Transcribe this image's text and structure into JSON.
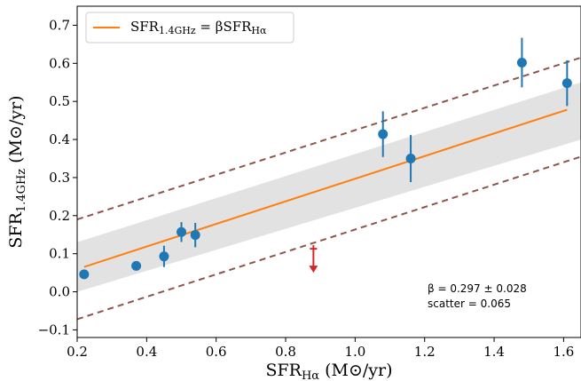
{
  "chart_data": {
    "type": "scatter",
    "title": "",
    "xlabel": {
      "main": "SFR",
      "sub": "Hα",
      "unit": " (M⊙/yr)"
    },
    "ylabel": {
      "main": "SFR",
      "sub": "1.4GHz",
      "unit": " (M⊙/yr)"
    },
    "xlim": [
      0.2,
      1.65
    ],
    "ylim": [
      -0.12,
      0.75
    ],
    "xticks": [
      0.2,
      0.4,
      0.6,
      0.8,
      1.0,
      1.2,
      1.4,
      1.6
    ],
    "xtick_labels": [
      "0.2",
      "0.4",
      "0.6",
      "0.8",
      "1.0",
      "1.2",
      "1.4",
      "1.6"
    ],
    "yticks": [
      -0.1,
      0.0,
      0.1,
      0.2,
      0.3,
      0.4,
      0.5,
      0.6,
      0.7
    ],
    "ytick_labels": [
      "−0.1",
      "0.0",
      "0.1",
      "0.2",
      "0.3",
      "0.4",
      "0.5",
      "0.6",
      "0.7"
    ],
    "grid": false,
    "legend_position": "top-left",
    "legend_label": {
      "lhs": "SFR",
      "lhs_sub": "1.4GHz",
      "eq": " = β",
      "rhs": "SFR",
      "rhs_sub": "Hα"
    },
    "colors": {
      "points": "#1f77b4",
      "fit": "#ff7f0e",
      "bounds": "#8c564b",
      "band": "#dddddd",
      "upper_limit": "#d62728"
    },
    "points": [
      {
        "x": 0.22,
        "y": 0.046,
        "yerr": 0.0
      },
      {
        "x": 0.37,
        "y": 0.068,
        "yerr": 0.0
      },
      {
        "x": 0.45,
        "y": 0.093,
        "yerr": 0.028
      },
      {
        "x": 0.5,
        "y": 0.157,
        "yerr": 0.026
      },
      {
        "x": 0.54,
        "y": 0.149,
        "yerr": 0.032
      },
      {
        "x": 1.08,
        "y": 0.414,
        "yerr": 0.06
      },
      {
        "x": 1.16,
        "y": 0.35,
        "yerr": 0.062
      },
      {
        "x": 1.48,
        "y": 0.602,
        "yerr": 0.065
      },
      {
        "x": 1.61,
        "y": 0.548,
        "yerr": 0.06
      }
    ],
    "upper_limit": {
      "x": 0.88,
      "y": 0.113,
      "y_to": 0.05
    },
    "fit": {
      "slope": 0.297,
      "x_range": [
        0.22,
        1.61
      ]
    },
    "scatter_band": {
      "lower_at_xmin": 0.0,
      "upper_at_xmin": 0.13,
      "lower_at_xmax": 0.4,
      "upper_at_xmax": 0.55
    },
    "bounds_lines": {
      "upper": {
        "at_xmin": 0.19,
        "at_xmax": 0.615
      },
      "lower": {
        "at_xmin": -0.072,
        "at_xmax": 0.355
      }
    },
    "annotations": {
      "beta_text": "β = 0.297 ± 0.028",
      "scatter_text": "scatter = 0.065",
      "position": "lower-right"
    }
  }
}
